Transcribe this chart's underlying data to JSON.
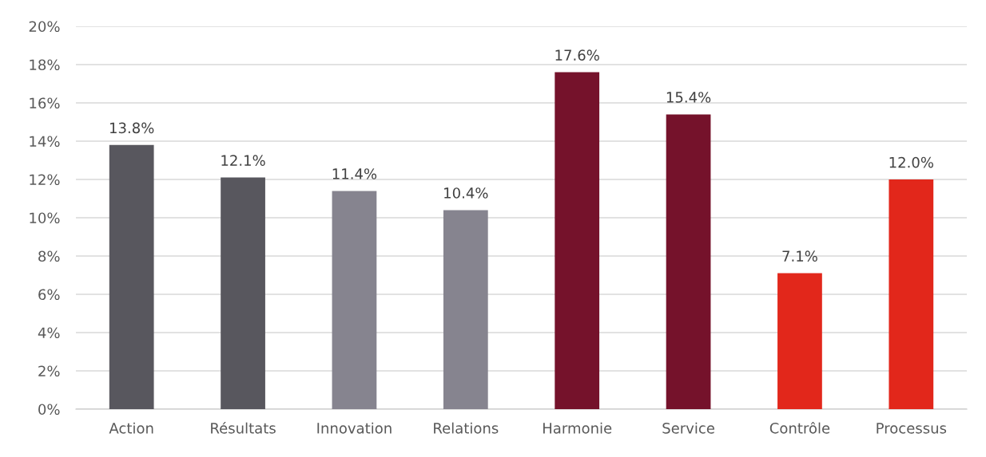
{
  "chart_data": {
    "type": "bar",
    "categories": [
      "Action",
      "Résultats",
      "Innovation",
      "Relations",
      "Harmonie",
      "Service",
      "Contrôle",
      "Processus"
    ],
    "values": [
      13.8,
      12.1,
      11.4,
      10.4,
      17.6,
      15.4,
      7.1,
      12.0
    ],
    "colors": [
      "#58575e",
      "#58575e",
      "#86848f",
      "#86848f",
      "#75122b",
      "#75122b",
      "#e2271b",
      "#e2271b"
    ],
    "value_labels": [
      "13.8%",
      "12.1%",
      "11.4%",
      "10.4%",
      "17.6%",
      "15.4%",
      "7.1%",
      "12.0%"
    ],
    "ylim": [
      0,
      20
    ],
    "yticks": [
      {
        "value": 0,
        "label": "0%"
      },
      {
        "value": 2,
        "label": "2%"
      },
      {
        "value": 4,
        "label": "4%"
      },
      {
        "value": 6,
        "label": "6%"
      },
      {
        "value": 8,
        "label": "8%"
      },
      {
        "value": 10,
        "label": "10%"
      },
      {
        "value": 12,
        "label": "12%"
      },
      {
        "value": 14,
        "label": "14%"
      },
      {
        "value": 16,
        "label": "16%"
      },
      {
        "value": 18,
        "label": "18%"
      },
      {
        "value": 20,
        "label": "20%"
      }
    ],
    "grid": "y"
  }
}
